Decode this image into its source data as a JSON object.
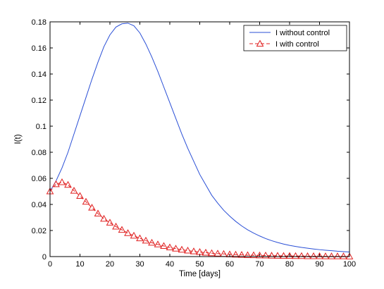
{
  "chart_data": {
    "type": "line",
    "title": "",
    "xlabel": "Time [days]",
    "ylabel": "I(t)",
    "xlim": [
      0,
      100
    ],
    "ylim": [
      0,
      0.18
    ],
    "xticks": [
      0,
      10,
      20,
      30,
      40,
      50,
      60,
      70,
      80,
      90,
      100
    ],
    "yticks": [
      0,
      0.02,
      0.04,
      0.06,
      0.08,
      0.1,
      0.12,
      0.14,
      0.16,
      0.18
    ],
    "xtick_labels": [
      "0",
      "10",
      "20",
      "30",
      "40",
      "50",
      "60",
      "70",
      "80",
      "90",
      "100"
    ],
    "ytick_labels": [
      "0",
      "0.02",
      "0.04",
      "0.06",
      "0.08",
      "0.1",
      "0.12",
      "0.14",
      "0.16",
      "0.18"
    ],
    "grid": false,
    "legend_position": "top-right",
    "series": [
      {
        "name": "I without control",
        "color": "#2a4fd6",
        "style": "solid",
        "marker": "none",
        "x": [
          0,
          2,
          4,
          6,
          8,
          10,
          12,
          14,
          16,
          18,
          20,
          22,
          24,
          26,
          28,
          30,
          32,
          34,
          36,
          38,
          40,
          42,
          44,
          46,
          48,
          50,
          52,
          54,
          56,
          58,
          60,
          62,
          64,
          66,
          68,
          70,
          72,
          74,
          76,
          78,
          80,
          82,
          84,
          86,
          88,
          90,
          92,
          94,
          96,
          98,
          100
        ],
        "y": [
          0.05,
          0.058,
          0.068,
          0.08,
          0.094,
          0.108,
          0.122,
          0.136,
          0.149,
          0.161,
          0.17,
          0.176,
          0.1785,
          0.179,
          0.177,
          0.1715,
          0.163,
          0.153,
          0.142,
          0.13,
          0.118,
          0.106,
          0.094,
          0.083,
          0.073,
          0.063,
          0.055,
          0.047,
          0.041,
          0.0355,
          0.031,
          0.027,
          0.0235,
          0.0205,
          0.018,
          0.0158,
          0.0138,
          0.0122,
          0.0108,
          0.0096,
          0.0086,
          0.0078,
          0.007,
          0.0064,
          0.0058,
          0.0053,
          0.0049,
          0.0045,
          0.0041,
          0.0038,
          0.0035
        ]
      },
      {
        "name": "I with control",
        "color": "#e02020",
        "style": "dashed",
        "marker": "triangle",
        "x": [
          0,
          2,
          4,
          6,
          8,
          10,
          12,
          14,
          16,
          18,
          20,
          22,
          24,
          26,
          28,
          30,
          32,
          34,
          36,
          38,
          40,
          42,
          44,
          46,
          48,
          50,
          52,
          54,
          56,
          58,
          60,
          62,
          64,
          66,
          68,
          70,
          72,
          74,
          76,
          78,
          80,
          82,
          84,
          86,
          88,
          90,
          92,
          94,
          96,
          98,
          100
        ],
        "y": [
          0.05,
          0.0555,
          0.057,
          0.055,
          0.0505,
          0.0465,
          0.042,
          0.0375,
          0.033,
          0.029,
          0.026,
          0.023,
          0.0205,
          0.018,
          0.016,
          0.014,
          0.0122,
          0.0106,
          0.0093,
          0.0081,
          0.007,
          0.0061,
          0.0053,
          0.0046,
          0.004,
          0.0035,
          0.003,
          0.0026,
          0.0023,
          0.002,
          0.0017,
          0.0015,
          0.0013,
          0.0011,
          0.001,
          0.0009,
          0.0008,
          0.0007,
          0.0006,
          0.0005,
          0.0005,
          0.0004,
          0.0004,
          0.0003,
          0.0003,
          0.0003,
          0.0002,
          0.0002,
          0.0002,
          0.0002,
          0.0001
        ]
      }
    ]
  }
}
